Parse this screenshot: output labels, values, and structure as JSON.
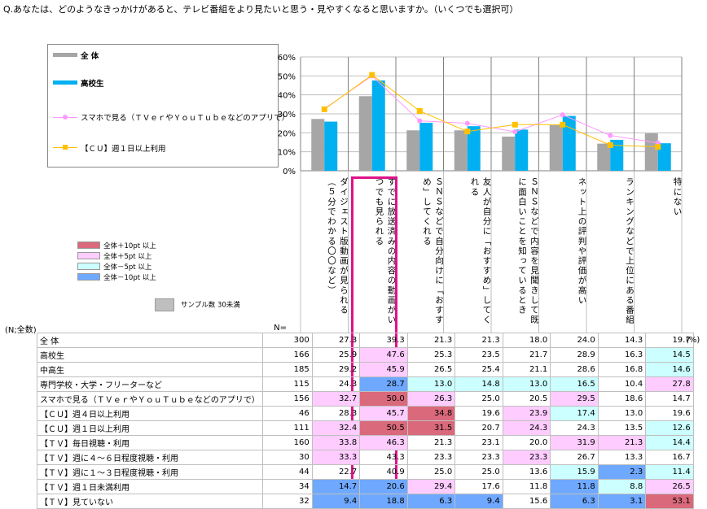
{
  "question": "Q.あなたは、どのようなきっかけがあると、テレビ番組をより見たいと思う・見やすくなると思いますか。（いくつでも選択可）",
  "colors": {
    "all_bar": "#a6a6a6",
    "hs_bar": "#00b0f0",
    "smartphone_line": "#ff99ff",
    "cu_line": "#ffc000",
    "hl_border": "#e0128a",
    "plus10": "#d9697b",
    "plus5": "#ffccff",
    "minus5": "#ccffff",
    "minus10": "#6fa8ff",
    "sample_small": "#bfbfbf"
  },
  "legend": {
    "all": "全 体",
    "hs": "高校生",
    "smartphone": "スマホで見る（ＴＶｅｒやＹｏｕＴｕｂｅなどのアプリで）",
    "cu": "【ＣＵ】週１日以上利用"
  },
  "color_legend": [
    {
      "key": "plus10",
      "label": "全体＋10pt 以上"
    },
    {
      "key": "plus5",
      "label": "全体＋5pt 以上"
    },
    {
      "key": "minus5",
      "label": "全体－5pt 以上"
    },
    {
      "key": "minus10",
      "label": "全体－10pt 以上"
    }
  ],
  "sample_legend": "サンプル数 30未満",
  "n_label": "(N;全数)",
  "n_header": "N=",
  "pct_unit": "(%)",
  "chart_data": {
    "type": "bar",
    "ylim": [
      0,
      60
    ],
    "yticks": [
      "0%",
      "10%",
      "20%",
      "30%",
      "40%",
      "50%",
      "60%"
    ],
    "categories": [
      "ダイジェスト版動画が見られる（５分でわかる〇〇など）",
      "すでに放送済みの内容の動画がいつでも見られる",
      "ＳＮＳなどで自分向けに「おすすめ」してくれる",
      "友人が自分に「おすすめ」してくれる",
      "ＳＮＳなどで内容を見聞きして既に面白いことを知っているとき",
      "ネット上の評判や評価が高い",
      "ランキングなどで上位にある番組",
      "特にない"
    ],
    "series": [
      {
        "name": "全 体",
        "kind": "bar",
        "values": [
          27.3,
          39.3,
          21.3,
          21.3,
          18.0,
          24.0,
          14.3,
          19.7
        ]
      },
      {
        "name": "高校生",
        "kind": "bar",
        "values": [
          25.9,
          47.6,
          25.3,
          23.5,
          21.7,
          28.9,
          16.3,
          14.5
        ]
      },
      {
        "name": "スマホで見る（ＴＶｅｒやＹｏｕＴｕｂｅなどのアプリで）",
        "kind": "line",
        "values": [
          32.7,
          50.0,
          26.3,
          25.0,
          20.5,
          29.5,
          18.6,
          14.7
        ]
      },
      {
        "name": "【ＣＵ】週１日以上利用",
        "kind": "line",
        "values": [
          32.4,
          50.5,
          31.5,
          20.7,
          24.3,
          24.3,
          13.5,
          12.6
        ]
      }
    ]
  },
  "table": {
    "rows": [
      {
        "label": "全 体",
        "n": "300",
        "values": [
          "27.3",
          "39.3",
          "21.3",
          "21.3",
          "18.0",
          "24.0",
          "14.3",
          "19.7"
        ],
        "shade": [
          "",
          "",
          "",
          "",
          "",
          "",
          "",
          ""
        ]
      },
      {
        "label": "高校生",
        "n": "166",
        "values": [
          "25.9",
          "47.6",
          "25.3",
          "23.5",
          "21.7",
          "28.9",
          "16.3",
          "14.5"
        ],
        "shade": [
          "",
          "plus5",
          "",
          "",
          "",
          "",
          "",
          "minus5"
        ]
      },
      {
        "label": "中高生",
        "n": "185",
        "values": [
          "29.2",
          "45.9",
          "26.5",
          "25.4",
          "21.1",
          "28.6",
          "16.8",
          "14.6"
        ],
        "shade": [
          "",
          "plus5",
          "",
          "",
          "",
          "",
          "",
          "minus5"
        ]
      },
      {
        "label": "専門学校・大学・フリーターなど",
        "n": "115",
        "values": [
          "24.3",
          "28.7",
          "13.0",
          "14.8",
          "13.0",
          "16.5",
          "10.4",
          "27.8"
        ],
        "shade": [
          "",
          "minus10",
          "minus5",
          "minus5",
          "minus5",
          "minus5",
          "",
          "plus5"
        ]
      },
      {
        "label": "スマホで見る（ＴＶｅｒやＹｏｕＴｕｂｅなどのアプリで）",
        "n": "156",
        "values": [
          "32.7",
          "50.0",
          "26.3",
          "25.0",
          "20.5",
          "29.5",
          "18.6",
          "14.7"
        ],
        "shade": [
          "plus5",
          "plus10",
          "plus5",
          "",
          "",
          "plus5",
          "",
          ""
        ]
      },
      {
        "label": "【ＣＵ】週４日以上利用",
        "n": "46",
        "values": [
          "28.3",
          "45.7",
          "34.8",
          "19.6",
          "23.9",
          "17.4",
          "13.0",
          "19.6"
        ],
        "shade": [
          "",
          "plus5",
          "plus10",
          "",
          "plus5",
          "minus5",
          "",
          ""
        ]
      },
      {
        "label": "【ＣＵ】週１日以上利用",
        "n": "111",
        "values": [
          "32.4",
          "50.5",
          "31.5",
          "20.7",
          "24.3",
          "24.3",
          "13.5",
          "12.6"
        ],
        "shade": [
          "plus5",
          "plus10",
          "plus10",
          "",
          "plus5",
          "",
          "",
          "minus5"
        ]
      },
      {
        "label": "【ＴＶ】毎日視聴・利用",
        "n": "160",
        "values": [
          "33.8",
          "46.3",
          "21.3",
          "23.1",
          "20.0",
          "31.9",
          "21.3",
          "14.4"
        ],
        "shade": [
          "plus5",
          "plus5",
          "",
          "",
          "",
          "plus5",
          "plus5",
          "minus5"
        ]
      },
      {
        "label": "【ＴＶ】週に４～６日程度視聴・利用",
        "n": "30",
        "values": [
          "33.3",
          "43.3",
          "23.3",
          "23.3",
          "23.3",
          "26.7",
          "13.3",
          "16.7"
        ],
        "shade": [
          "plus5",
          "",
          "",
          "",
          "plus5",
          "",
          "",
          ""
        ]
      },
      {
        "label": "【ＴＶ】週に１～３日程度視聴・利用",
        "n": "44",
        "values": [
          "22.7",
          "40.9",
          "25.0",
          "25.0",
          "13.6",
          "15.9",
          "2.3",
          "11.4"
        ],
        "shade": [
          "",
          "",
          "",
          "",
          "",
          "minus5",
          "minus10",
          "minus5"
        ]
      },
      {
        "label": "【ＴＶ】週１日未満利用",
        "n": "34",
        "values": [
          "14.7",
          "20.6",
          "29.4",
          "17.6",
          "11.8",
          "11.8",
          "8.8",
          "26.5"
        ],
        "shade": [
          "minus10",
          "minus10",
          "plus5",
          "",
          "",
          "minus10",
          "minus5",
          "plus5"
        ]
      },
      {
        "label": "【ＴＶ】見ていない",
        "n": "32",
        "values": [
          "9.4",
          "18.8",
          "6.3",
          "9.4",
          "15.6",
          "6.3",
          "3.1",
          "53.1"
        ],
        "shade": [
          "minus10",
          "minus10",
          "minus10",
          "minus10",
          "",
          "minus10",
          "minus10",
          "plus10"
        ]
      }
    ]
  }
}
